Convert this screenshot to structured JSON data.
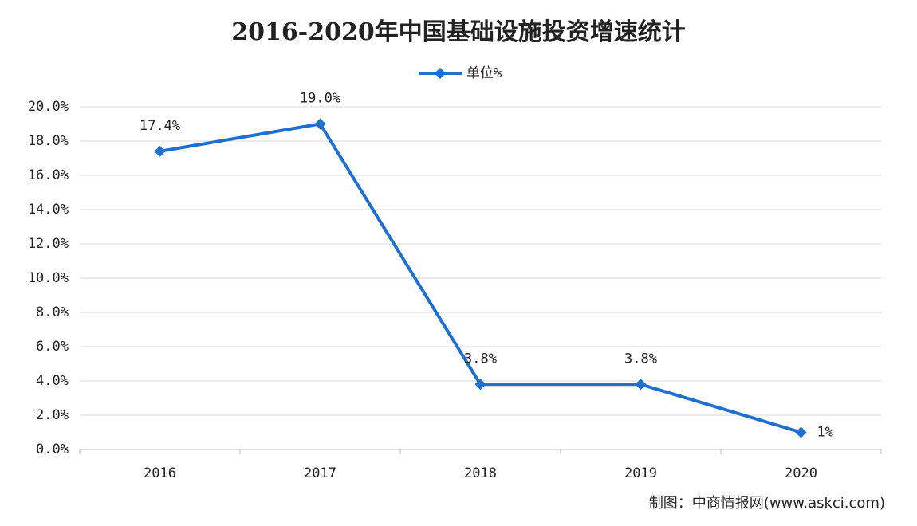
{
  "chart_data": {
    "type": "line",
    "title": "2016-2020年中国基础设施投资增速统计",
    "categories": [
      "2016",
      "2017",
      "2018",
      "2019",
      "2020"
    ],
    "series": [
      {
        "name": "单位%",
        "color": "#1f6fd1",
        "values": [
          17.4,
          19.0,
          3.8,
          3.8,
          1
        ],
        "value_labels": [
          "17.4%",
          "19.0%",
          "3.8%",
          "3.8%",
          "1%"
        ]
      }
    ],
    "ylim": [
      0,
      20
    ],
    "yticks": [
      {
        "value": 0,
        "label": "0.0%"
      },
      {
        "value": 2,
        "label": "2.0%"
      },
      {
        "value": 4,
        "label": "4.0%"
      },
      {
        "value": 6,
        "label": "6.0%"
      },
      {
        "value": 8,
        "label": "8.0%"
      },
      {
        "value": 10,
        "label": "10.0%"
      },
      {
        "value": 12,
        "label": "12.0%"
      },
      {
        "value": 14,
        "label": "14.0%"
      },
      {
        "value": 16,
        "label": "16.0%"
      },
      {
        "value": 18,
        "label": "18.0%"
      },
      {
        "value": 20,
        "label": "20.0%"
      }
    ],
    "grid": true,
    "legend": "top",
    "source": "制图：中商情报网(www.askci.com)"
  }
}
